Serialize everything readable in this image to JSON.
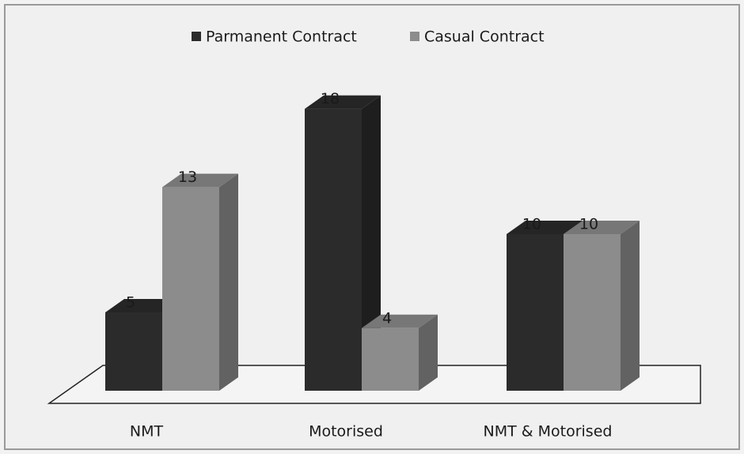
{
  "chart_data": {
    "type": "bar3d",
    "categories": [
      "NMT",
      "Motorised",
      "NMT & Motorised"
    ],
    "series": [
      {
        "name": "Parmanent Contract",
        "color": "#2b2b2b",
        "values": [
          5,
          18,
          10
        ]
      },
      {
        "name": "Casual Contract",
        "color": "#8c8c8c",
        "values": [
          13,
          4,
          10
        ]
      }
    ],
    "legend": "top"
  }
}
